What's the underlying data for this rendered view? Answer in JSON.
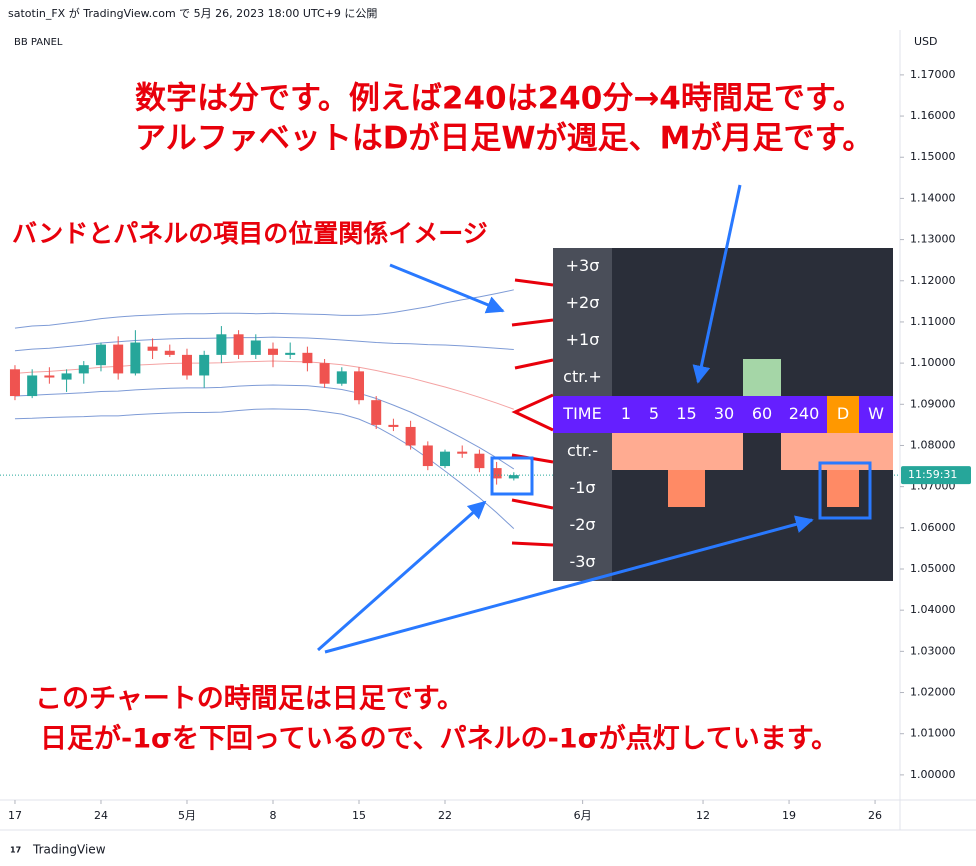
{
  "header": {
    "title": "satotin_FX が TradingView.com で 5月 26, 2023 18:00 UTC+9 に公開"
  },
  "footer": {
    "brand": "TradingView"
  },
  "chart_data": {
    "type": "candlestick",
    "title": "BB PANEL",
    "y_unit": "USD",
    "last_price_label": "11:59:31",
    "last_price": 1.0728,
    "grid": false,
    "up_color": "#26a69a",
    "down_color": "#ef5350",
    "xlim": [
      -0.87,
      51.45
    ],
    "xticks": [
      {
        "value": 0,
        "label": "17"
      },
      {
        "value": 5,
        "label": "24"
      },
      {
        "value": 10,
        "label": "5月"
      },
      {
        "value": 15,
        "label": "8"
      },
      {
        "value": 20,
        "label": "15"
      },
      {
        "value": 25,
        "label": "22"
      },
      {
        "value": 33,
        "label": "6月"
      },
      {
        "value": 40,
        "label": "12"
      },
      {
        "value": 45,
        "label": "19"
      },
      {
        "value": 50,
        "label": "26"
      }
    ],
    "ylim": [
      0.9939,
      1.1809
    ],
    "yticks": [
      {
        "value": 1.0,
        "label": "1.00000"
      },
      {
        "value": 1.01,
        "label": "1.01000"
      },
      {
        "value": 1.02,
        "label": "1.02000"
      },
      {
        "value": 1.03,
        "label": "1.03000"
      },
      {
        "value": 1.04,
        "label": "1.04000"
      },
      {
        "value": 1.05,
        "label": "1.05000"
      },
      {
        "value": 1.06,
        "label": "1.06000"
      },
      {
        "value": 1.07,
        "label": "1.07000"
      },
      {
        "value": 1.08,
        "label": "1.08000"
      },
      {
        "value": 1.09,
        "label": "1.09000"
      },
      {
        "value": 1.1,
        "label": "1.10000"
      },
      {
        "value": 1.11,
        "label": "1.11000"
      },
      {
        "value": 1.12,
        "label": "1.12000"
      },
      {
        "value": 1.13,
        "label": "1.13000"
      },
      {
        "value": 1.14,
        "label": "1.14000"
      },
      {
        "value": 1.15,
        "label": "1.15000"
      },
      {
        "value": 1.16,
        "label": "1.16000"
      },
      {
        "value": 1.17,
        "label": "1.17000"
      }
    ],
    "x": [
      0,
      1,
      2,
      3,
      4,
      5,
      6,
      7,
      8,
      9,
      10,
      11,
      12,
      13,
      14,
      15,
      16,
      17,
      18,
      19,
      20,
      21,
      22,
      23,
      24,
      25,
      26,
      27,
      28,
      29
    ],
    "open": [
      1.0985,
      1.092,
      1.097,
      1.096,
      1.0975,
      1.0995,
      1.1045,
      1.0975,
      1.104,
      1.103,
      1.102,
      1.097,
      1.102,
      1.107,
      1.102,
      1.1035,
      1.102,
      1.1025,
      1.1,
      1.095,
      1.098,
      1.091,
      1.085,
      1.0845,
      1.08,
      1.075,
      1.0785,
      1.078,
      1.0745,
      1.072
    ],
    "high": [
      1.0995,
      1.0985,
      1.099,
      1.0985,
      1.1005,
      1.105,
      1.1065,
      1.108,
      1.106,
      1.1045,
      1.1035,
      1.103,
      1.109,
      1.108,
      1.107,
      1.105,
      1.105,
      1.104,
      1.101,
      1.099,
      1.099,
      1.092,
      1.0865,
      1.086,
      1.081,
      1.079,
      1.08,
      1.079,
      1.076,
      1.0735
    ],
    "low": [
      1.091,
      1.0915,
      1.095,
      1.093,
      1.095,
      1.098,
      1.096,
      1.097,
      1.101,
      1.1015,
      1.096,
      1.094,
      1.1,
      1.101,
      1.101,
      1.099,
      1.101,
      1.098,
      1.094,
      1.0945,
      1.09,
      1.084,
      1.0835,
      1.079,
      1.074,
      1.0745,
      1.077,
      1.0735,
      1.0705,
      1.0715
    ],
    "close": [
      1.092,
      1.097,
      1.0965,
      1.0975,
      1.0995,
      1.1045,
      1.0975,
      1.105,
      1.103,
      1.102,
      1.097,
      1.102,
      1.107,
      1.102,
      1.1055,
      1.102,
      1.1025,
      1.1,
      1.095,
      1.098,
      1.091,
      1.085,
      1.0845,
      1.08,
      1.075,
      1.0785,
      1.078,
      1.0745,
      1.072,
      1.0728
    ],
    "bands": [
      {
        "color": "#7e9bd6",
        "values": [
          1.1085,
          1.109,
          1.1092,
          1.1097,
          1.1102,
          1.1108,
          1.1112,
          1.1115,
          1.1117,
          1.1119,
          1.112,
          1.112,
          1.1121,
          1.1121,
          1.112,
          1.1121,
          1.112,
          1.1119,
          1.1118,
          1.1116,
          1.1116,
          1.1118,
          1.1123,
          1.113,
          1.1137,
          1.1146,
          1.1154,
          1.1161,
          1.1169,
          1.1178
        ]
      },
      {
        "color": "#7e9bd6",
        "values": [
          1.103,
          1.1034,
          1.1036,
          1.104,
          1.1044,
          1.1049,
          1.1052,
          1.1055,
          1.1057,
          1.1059,
          1.106,
          1.106,
          1.1061,
          1.1062,
          1.1062,
          1.1063,
          1.1062,
          1.1061,
          1.1059,
          1.1056,
          1.1053,
          1.105,
          1.1048,
          1.1047,
          1.1045,
          1.1044,
          1.1042,
          1.1039,
          1.1036,
          1.1033
        ]
      },
      {
        "color": "#f4a3a3",
        "values": [
          1.0975,
          1.0978,
          1.098,
          1.0983,
          1.0986,
          1.099,
          1.0992,
          1.0995,
          1.0997,
          1.0999,
          1.1,
          1.1,
          1.1001,
          1.1003,
          1.1004,
          1.1005,
          1.1004,
          1.1003,
          1.1,
          1.0996,
          1.099,
          1.0982,
          1.0973,
          1.0964,
          1.0953,
          1.0942,
          1.093,
          1.0917,
          1.0903,
          1.0888
        ]
      },
      {
        "color": "#7e9bd6",
        "values": [
          1.092,
          1.0922,
          1.0924,
          1.0926,
          1.0928,
          1.0931,
          1.0932,
          1.0935,
          1.0937,
          1.0939,
          1.094,
          1.094,
          1.0941,
          1.0944,
          1.0946,
          1.0947,
          1.0946,
          1.0945,
          1.0941,
          1.0936,
          1.0927,
          1.0914,
          1.0898,
          1.0881,
          1.0861,
          1.084,
          1.0818,
          1.0795,
          1.077,
          1.0743
        ]
      },
      {
        "color": "#7e9bd6",
        "values": [
          1.0865,
          1.0866,
          1.0868,
          1.0869,
          1.087,
          1.0872,
          1.0872,
          1.0875,
          1.0877,
          1.0879,
          1.088,
          1.088,
          1.0881,
          1.0885,
          1.0888,
          1.0889,
          1.0888,
          1.0887,
          1.0882,
          1.0876,
          1.0864,
          1.0846,
          1.0823,
          1.0798,
          1.0769,
          1.0738,
          1.0706,
          1.0673,
          1.0637,
          1.0598
        ]
      }
    ]
  },
  "panel": {
    "label_color": "#4a4e59",
    "cell_color": "#2a2e39",
    "header": {
      "label": "TIME",
      "color": "#651fff",
      "cells": [
        "1",
        "5",
        "15",
        "30",
        "60",
        "240",
        "D",
        "W"
      ],
      "highlight": [
        {
          "col": 6,
          "color": "#ff9800"
        }
      ]
    },
    "rows": [
      {
        "label": "+3σ",
        "lit": []
      },
      {
        "label": "+2σ",
        "lit": []
      },
      {
        "label": "+1σ",
        "lit": []
      },
      {
        "label": "ctr.+",
        "lit": [
          {
            "col": 4,
            "color": "#a5d6a7"
          }
        ]
      },
      {
        "label": "ctr.-",
        "lit": [
          {
            "col": 0,
            "color": "#ffab91"
          },
          {
            "col": 1,
            "color": "#ffab91"
          },
          {
            "col": 2,
            "color": "#ffab91"
          },
          {
            "col": 3,
            "color": "#ffab91"
          },
          {
            "col": 5,
            "color": "#ffab91"
          },
          {
            "col": 6,
            "color": "#ffab91"
          },
          {
            "col": 7,
            "color": "#ffab91"
          }
        ]
      },
      {
        "label": "-1σ",
        "lit": [
          {
            "col": 2,
            "color": "#ff8a65"
          },
          {
            "col": 6,
            "color": "#ff8a65"
          }
        ]
      },
      {
        "label": "-2σ",
        "lit": []
      },
      {
        "label": "-3σ",
        "lit": []
      }
    ]
  },
  "annotations": {
    "note1": "数字は分です。例えば240は240分→4時間足です。",
    "note2": "アルファベットはDが日足Wが週足、Mが月足です。",
    "note3": "バンドとパネルの項目の位置関係イメージ",
    "note4": "このチャートの時間足は日足です。",
    "note5": "日足が-1σを下回っているので、パネルの-1σが点灯しています。"
  }
}
